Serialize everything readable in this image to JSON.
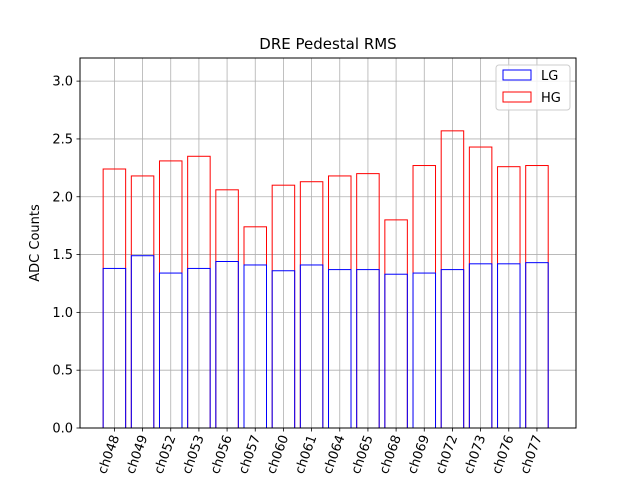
{
  "chart_data": {
    "type": "bar",
    "title": "DRE Pedestal RMS",
    "xlabel": "",
    "ylabel": "ADC Counts",
    "ylim": [
      0,
      3.2
    ],
    "yticks": [
      "0.0",
      "0.5",
      "1.0",
      "1.5",
      "2.0",
      "2.5",
      "3.0"
    ],
    "grid": true,
    "legend_position": "top-right",
    "categories": [
      "ch048",
      "ch049",
      "ch052",
      "ch053",
      "ch056",
      "ch057",
      "ch060",
      "ch061",
      "ch064",
      "ch065",
      "ch068",
      "ch069",
      "ch072",
      "ch073",
      "ch076",
      "ch077"
    ],
    "series": [
      {
        "name": "LG",
        "color": "#0000ff",
        "values": [
          1.38,
          1.49,
          1.34,
          1.38,
          1.44,
          1.41,
          1.36,
          1.41,
          1.37,
          1.37,
          1.33,
          1.34,
          1.37,
          1.42,
          1.42,
          1.43
        ]
      },
      {
        "name": "HG",
        "color": "#ff0000",
        "values": [
          2.24,
          2.18,
          2.31,
          2.35,
          2.06,
          1.74,
          2.1,
          2.13,
          2.18,
          2.2,
          1.8,
          2.27,
          2.57,
          2.43,
          2.26,
          2.27
        ]
      }
    ]
  }
}
